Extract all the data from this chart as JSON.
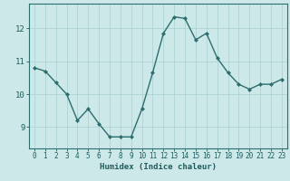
{
  "x": [
    0,
    1,
    2,
    3,
    4,
    5,
    6,
    7,
    8,
    9,
    10,
    11,
    12,
    13,
    14,
    15,
    16,
    17,
    18,
    19,
    20,
    21,
    22,
    23
  ],
  "y": [
    10.8,
    10.7,
    10.35,
    10.0,
    9.2,
    9.55,
    9.1,
    8.7,
    8.7,
    8.7,
    9.55,
    10.65,
    11.85,
    12.35,
    12.3,
    11.65,
    11.85,
    11.1,
    10.65,
    10.3,
    10.15,
    10.3,
    10.3,
    10.45
  ],
  "line_color": "#2d6e6e",
  "marker": "D",
  "markersize": 2,
  "linewidth": 1.0,
  "bg_color": "#cce8e8",
  "grid_color": "#afd4d4",
  "xlabel": "Humidex (Indice chaleur)",
  "xlabel_fontsize": 6.5,
  "ylabel_ticks": [
    9,
    10,
    11,
    12
  ],
  "xlim": [
    -0.5,
    23.5
  ],
  "ylim": [
    8.35,
    12.75
  ],
  "tick_color": "#1e5c5c",
  "xtick_fontsize": 5.5,
  "ytick_fontsize": 6.5,
  "axis_color": "#2d6e6e"
}
